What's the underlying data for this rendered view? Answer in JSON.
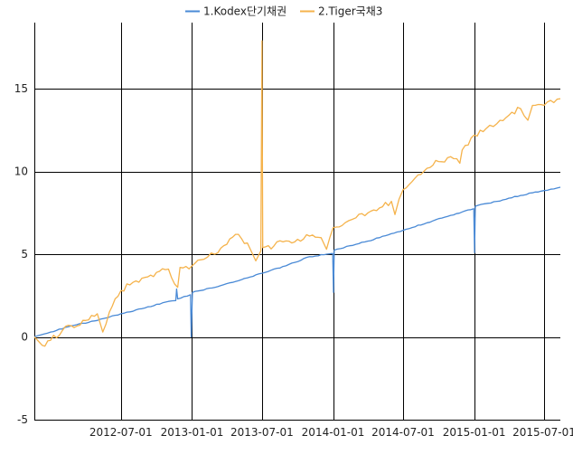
{
  "chart_data": {
    "type": "line",
    "title": "",
    "xlabel": "",
    "ylabel": "",
    "grid": true,
    "legend_position": "top-center",
    "x_range": [
      "2011-11-20",
      "2015-08-12"
    ],
    "ylim": [
      -5,
      19
    ],
    "y_ticks": [
      -5,
      0,
      5,
      10,
      15
    ],
    "x_ticks": [
      "2012-07-01",
      "2013-01-01",
      "2013-07-01",
      "2014-01-01",
      "2014-07-01",
      "2015-01-01",
      "2015-07-01"
    ],
    "series": [
      {
        "name": "1.Kodex단기채권",
        "color": "#4a8ad6",
        "points": [
          [
            "2011-11-20",
            0.0
          ],
          [
            "2012-01-01",
            0.3
          ],
          [
            "2012-03-01",
            0.7
          ],
          [
            "2012-05-01",
            1.0
          ],
          [
            "2012-07-01",
            1.4
          ],
          [
            "2012-09-01",
            1.75
          ],
          [
            "2012-11-01",
            2.15
          ],
          [
            "2012-11-20",
            2.2
          ],
          [
            "2012-11-22",
            2.9
          ],
          [
            "2012-11-25",
            2.3
          ],
          [
            "2012-12-28",
            2.55
          ],
          [
            "2012-12-30",
            0.0
          ],
          [
            "2013-01-02",
            2.7
          ],
          [
            "2013-03-01",
            3.0
          ],
          [
            "2013-05-01",
            3.4
          ],
          [
            "2013-07-01",
            3.85
          ],
          [
            "2013-09-01",
            4.3
          ],
          [
            "2013-11-01",
            4.85
          ],
          [
            "2013-12-31",
            5.05
          ],
          [
            "2014-01-02",
            2.7
          ],
          [
            "2014-01-04",
            5.25
          ],
          [
            "2014-03-01",
            5.6
          ],
          [
            "2014-05-01",
            6.0
          ],
          [
            "2014-07-01",
            6.45
          ],
          [
            "2014-09-01",
            6.9
          ],
          [
            "2014-11-01",
            7.35
          ],
          [
            "2014-12-31",
            7.75
          ],
          [
            "2015-01-02",
            5.1
          ],
          [
            "2015-01-04",
            7.9
          ],
          [
            "2015-03-01",
            8.2
          ],
          [
            "2015-05-01",
            8.55
          ],
          [
            "2015-07-01",
            8.85
          ],
          [
            "2015-08-12",
            9.05
          ]
        ]
      },
      {
        "name": "2.Tiger국채3",
        "color": "#f5b34c",
        "points": [
          [
            "2011-11-20",
            0.0
          ],
          [
            "2011-12-10",
            -0.5
          ],
          [
            "2012-01-01",
            -0.2
          ],
          [
            "2012-02-01",
            0.4
          ],
          [
            "2012-04-01",
            1.0
          ],
          [
            "2012-05-01",
            1.4
          ],
          [
            "2012-05-15",
            0.3
          ],
          [
            "2012-06-01",
            1.5
          ],
          [
            "2012-07-01",
            2.8
          ],
          [
            "2012-08-01",
            3.3
          ],
          [
            "2012-09-01",
            3.6
          ],
          [
            "2012-10-01",
            3.9
          ],
          [
            "2012-11-01",
            4.1
          ],
          [
            "2012-11-25",
            3.0
          ],
          [
            "2012-12-01",
            4.2
          ],
          [
            "2013-01-01",
            4.3
          ],
          [
            "2013-02-01",
            4.7
          ],
          [
            "2013-03-01",
            5.0
          ],
          [
            "2013-04-01",
            5.6
          ],
          [
            "2013-05-01",
            6.2
          ],
          [
            "2013-06-01",
            5.3
          ],
          [
            "2013-06-15",
            4.6
          ],
          [
            "2013-06-28",
            5.2
          ],
          [
            "2013-07-01",
            17.9
          ],
          [
            "2013-07-03",
            5.4
          ],
          [
            "2013-08-01",
            5.5
          ],
          [
            "2013-09-01",
            5.8
          ],
          [
            "2013-10-01",
            5.9
          ],
          [
            "2013-11-01",
            6.1
          ],
          [
            "2013-12-01",
            6.0
          ],
          [
            "2013-12-15",
            5.3
          ],
          [
            "2014-01-01",
            6.6
          ],
          [
            "2014-02-01",
            6.9
          ],
          [
            "2014-03-01",
            7.2
          ],
          [
            "2014-04-01",
            7.5
          ],
          [
            "2014-05-01",
            7.8
          ],
          [
            "2014-06-01",
            8.2
          ],
          [
            "2014-06-10",
            7.4
          ],
          [
            "2014-07-01",
            8.9
          ],
          [
            "2014-08-01",
            9.6
          ],
          [
            "2014-09-01",
            10.2
          ],
          [
            "2014-10-01",
            10.6
          ],
          [
            "2014-11-01",
            10.9
          ],
          [
            "2014-11-25",
            10.5
          ],
          [
            "2014-12-01",
            11.3
          ],
          [
            "2015-01-01",
            12.2
          ],
          [
            "2015-02-01",
            12.6
          ],
          [
            "2015-03-01",
            12.9
          ],
          [
            "2015-04-01",
            13.4
          ],
          [
            "2015-05-01",
            13.8
          ],
          [
            "2015-05-20",
            13.1
          ],
          [
            "2015-06-01",
            14.0
          ],
          [
            "2015-07-01",
            14.0
          ],
          [
            "2015-08-12",
            14.4
          ]
        ]
      }
    ]
  }
}
